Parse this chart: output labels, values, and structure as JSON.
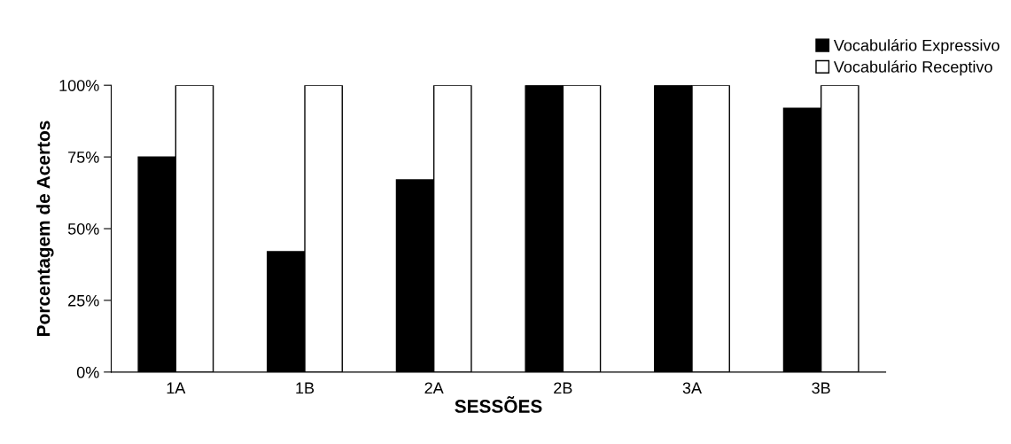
{
  "chart_data": {
    "type": "bar",
    "xlabel": "SESSÕES",
    "ylabel": "Porcentagem de Acertos",
    "categories": [
      "1A",
      "1B",
      "2A",
      "2B",
      "3A",
      "3B"
    ],
    "series": [
      {
        "name": "Vocabulário Expressivo",
        "color": "#000000",
        "values": [
          75,
          42,
          67,
          100,
          100,
          92
        ]
      },
      {
        "name": "Vocabulário Receptivo",
        "color": "#ffffff",
        "values": [
          100,
          100,
          100,
          100,
          100,
          100
        ]
      }
    ],
    "ylim": [
      0,
      100
    ],
    "yticks": [
      {
        "value": 0,
        "label": "0%"
      },
      {
        "value": 25,
        "label": "25%"
      },
      {
        "value": 50,
        "label": "50%"
      },
      {
        "value": 75,
        "label": "75%"
      },
      {
        "value": 100,
        "label": "100%"
      }
    ],
    "grid": false,
    "legend": "top right"
  }
}
